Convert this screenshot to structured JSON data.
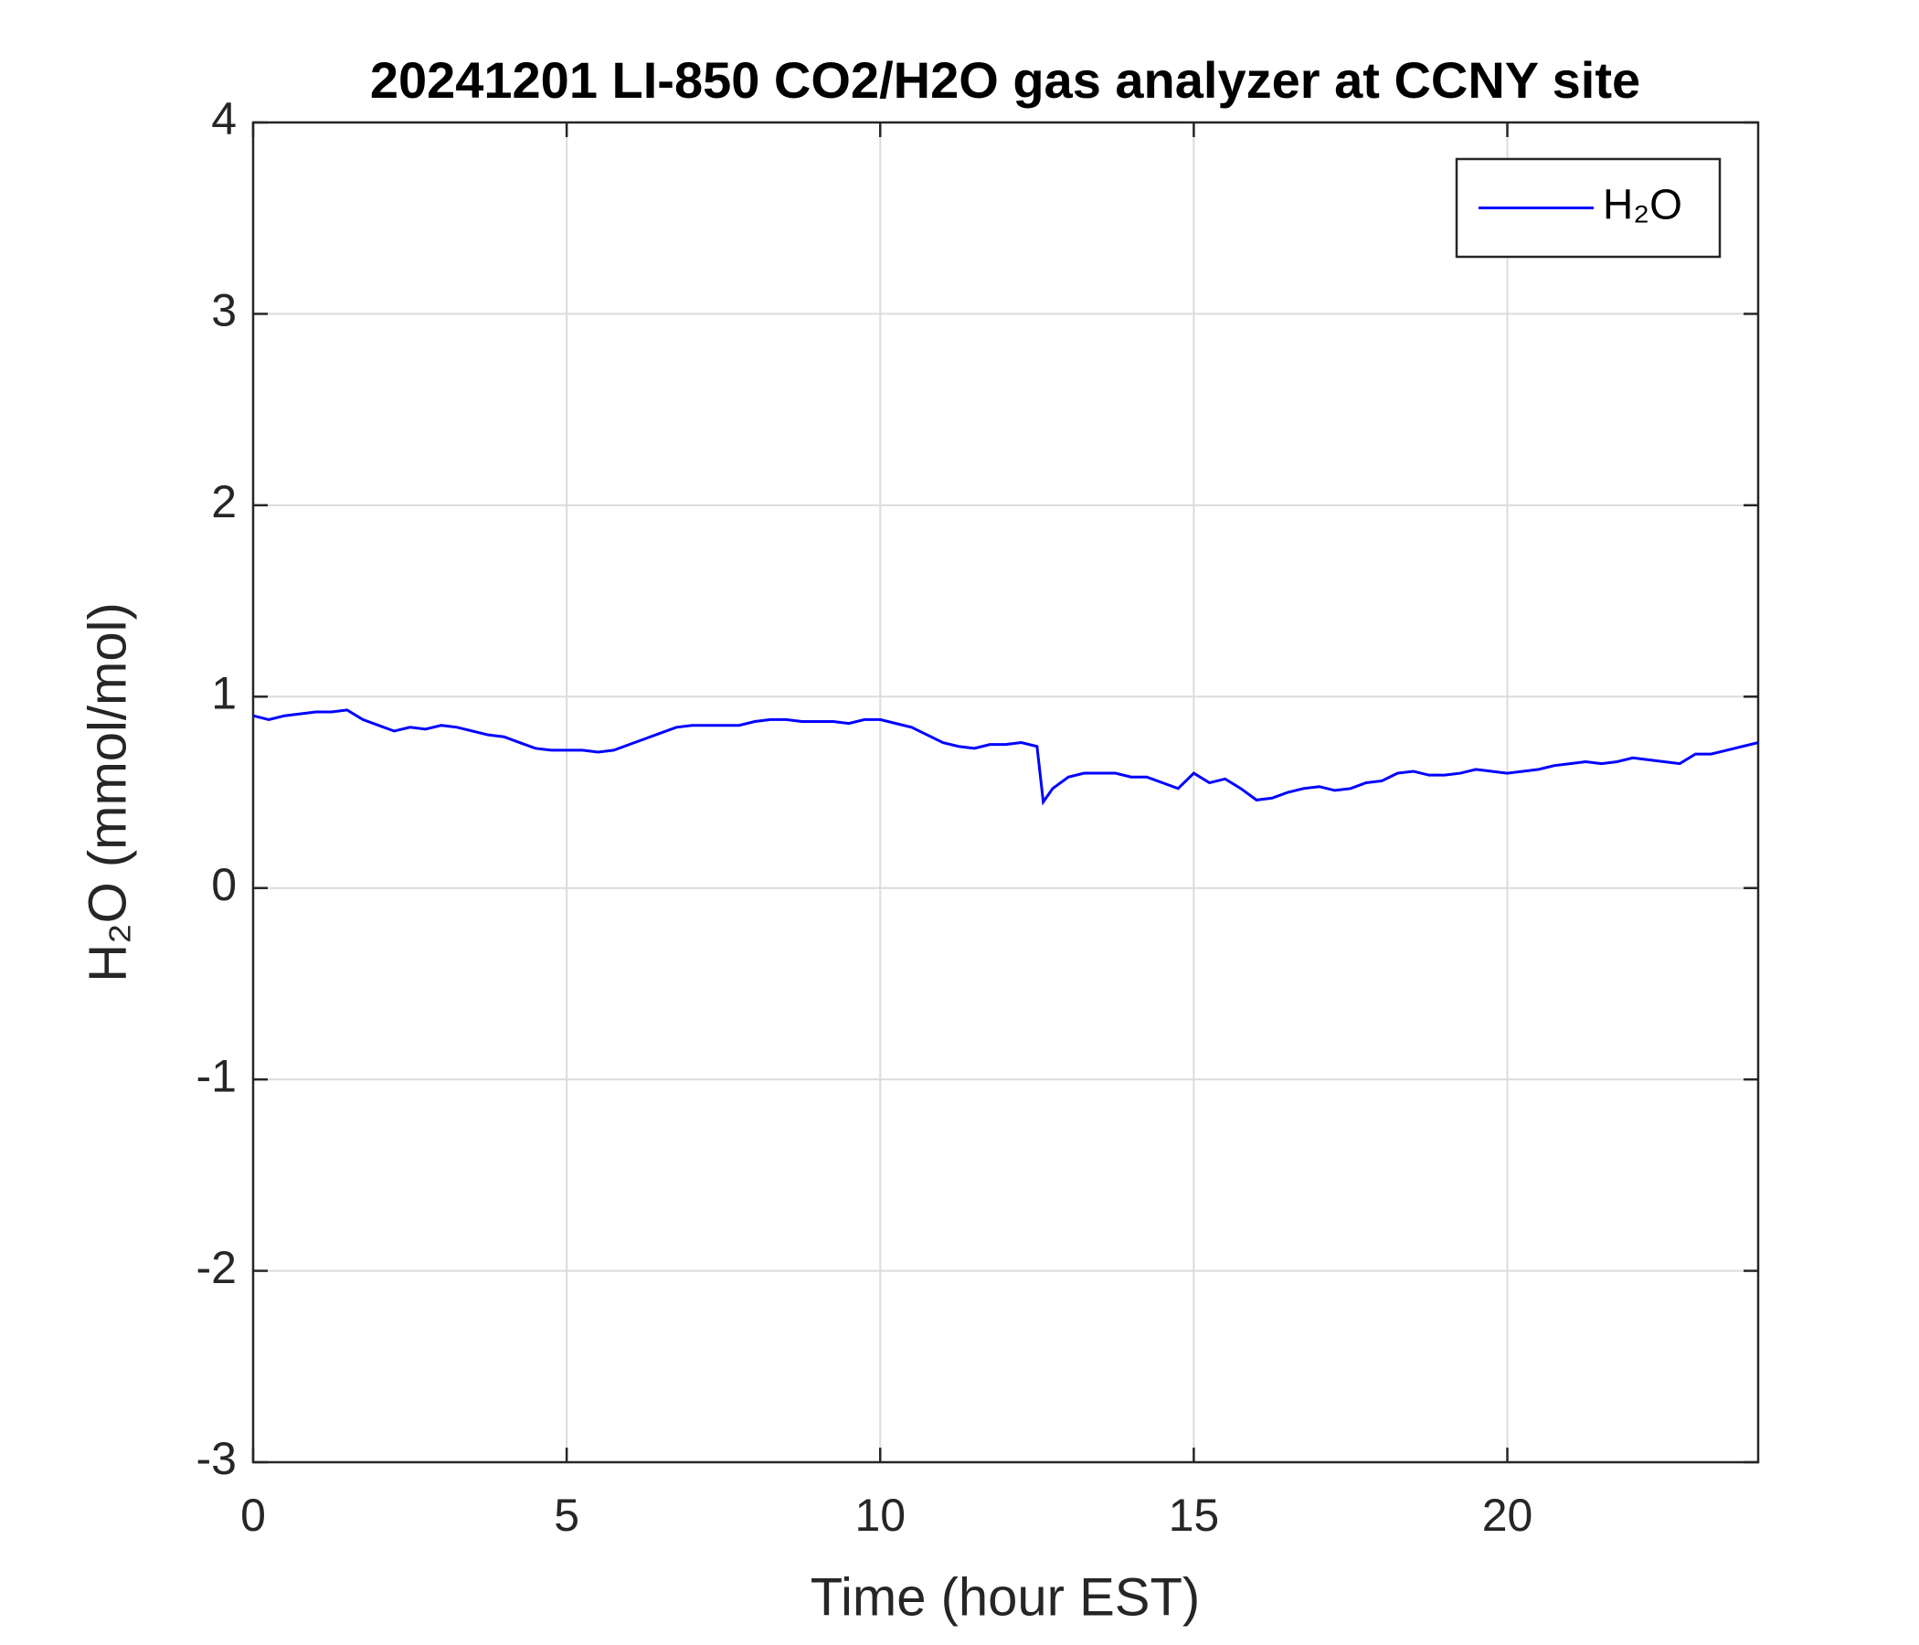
{
  "chart_data": {
    "type": "line",
    "title": "20241201 LI-850 CO2/H2O gas analyzer at CCNY site",
    "x_label": "Time (hour EST)",
    "y_label": "H₂O (mmol/mol)",
    "xlim": [
      0,
      24
    ],
    "xticks": [
      0,
      5,
      10,
      15,
      20
    ],
    "ylim": [
      -3,
      4
    ],
    "yticks": [
      -3,
      -2,
      -1,
      0,
      1,
      2,
      3,
      4
    ],
    "grid": true,
    "legend": "upper right",
    "x": [
      0,
      0.25,
      0.5,
      0.75,
      1,
      1.25,
      1.5,
      1.75,
      2,
      2.25,
      2.5,
      2.75,
      3,
      3.25,
      3.5,
      3.75,
      4,
      4.25,
      4.5,
      4.75,
      5,
      5.25,
      5.5,
      5.75,
      6,
      6.25,
      6.5,
      6.75,
      7,
      7.25,
      7.5,
      7.75,
      8,
      8.25,
      8.5,
      8.75,
      9,
      9.25,
      9.5,
      9.75,
      10,
      10.25,
      10.5,
      10.75,
      11,
      11.25,
      11.5,
      11.75,
      12,
      12.25,
      12.5,
      12.6,
      12.75,
      13,
      13.25,
      13.5,
      13.75,
      14,
      14.25,
      14.5,
      14.75,
      15,
      15.25,
      15.5,
      15.75,
      16,
      16.25,
      16.5,
      16.75,
      17,
      17.25,
      17.5,
      17.75,
      18,
      18.25,
      18.5,
      18.75,
      19,
      19.25,
      19.5,
      19.75,
      20,
      20.25,
      20.5,
      20.75,
      21,
      21.25,
      21.5,
      21.75,
      22,
      22.25,
      22.5,
      22.75,
      23,
      23.25,
      23.5,
      23.75,
      24
    ],
    "series": [
      {
        "name": "H₂O",
        "color": "#0000ff",
        "values": [
          0.9,
          0.88,
          0.9,
          0.91,
          0.92,
          0.92,
          0.93,
          0.88,
          0.85,
          0.82,
          0.84,
          0.83,
          0.85,
          0.84,
          0.82,
          0.8,
          0.79,
          0.76,
          0.73,
          0.72,
          0.72,
          0.72,
          0.71,
          0.72,
          0.75,
          0.78,
          0.81,
          0.84,
          0.85,
          0.85,
          0.85,
          0.85,
          0.87,
          0.88,
          0.88,
          0.87,
          0.87,
          0.87,
          0.86,
          0.88,
          0.88,
          0.86,
          0.84,
          0.8,
          0.76,
          0.74,
          0.73,
          0.75,
          0.75,
          0.76,
          0.74,
          0.45,
          0.52,
          0.58,
          0.6,
          0.6,
          0.6,
          0.58,
          0.58,
          0.55,
          0.52,
          0.6,
          0.55,
          0.57,
          0.52,
          0.46,
          0.47,
          0.5,
          0.52,
          0.53,
          0.51,
          0.52,
          0.55,
          0.56,
          0.6,
          0.61,
          0.59,
          0.59,
          0.6,
          0.62,
          0.61,
          0.6,
          0.61,
          0.62,
          0.64,
          0.65,
          0.66,
          0.65,
          0.66,
          0.68,
          0.67,
          0.66,
          0.65,
          0.7,
          0.7,
          0.72,
          0.74,
          0.76
        ]
      }
    ]
  }
}
